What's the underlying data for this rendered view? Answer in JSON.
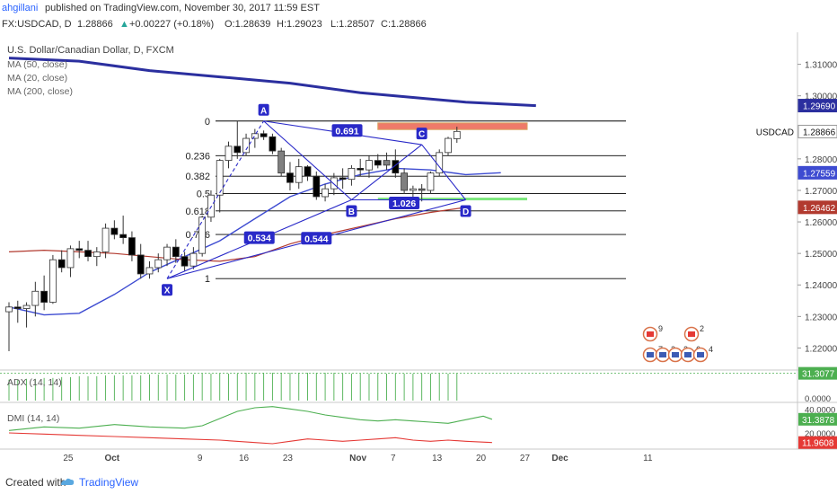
{
  "header": {
    "author": "ahgillani",
    "published": "published on TradingView.com, November 30, 2017 11:59 EST",
    "symbol": "FX:USDCAD, D",
    "last": "1.28866",
    "change": "+0.00227 (+0.18%)",
    "open": "O:1.28639",
    "high": "H:1.29023",
    "low": "L:1.28507",
    "close": "C:1.28866"
  },
  "legend": {
    "title": "U.S. Dollar/Canadian Dollar, D, FXCM",
    "ma50": "MA (50, close)",
    "ma20": "MA (20, close)",
    "ma200": "MA (200, close)"
  },
  "footer": {
    "created": "Created with",
    "brand": "TradingView"
  },
  "colors": {
    "ma200": "#2b2f9f",
    "ma20": "#3d4bd1",
    "ma50": "#b23a2f",
    "bull": "#ffffff",
    "bear": "#000000",
    "neutral": "#808080",
    "harmonic": "#2929c8",
    "fib": "#000000",
    "adx": "#4caf50",
    "dip": "#4caf50",
    "dim": "#e53935",
    "zone_red": "#ef7a6a",
    "zone_green": "#7ee87e"
  },
  "chart_data": {
    "type": "candlestick",
    "y_range": [
      1.213,
      1.319
    ],
    "yticks": [
      "1.31000",
      "1.30000",
      "1.28000",
      "1.27000",
      "1.26000",
      "1.25000",
      "1.24000",
      "1.23000",
      "1.22000"
    ],
    "x_labels": [
      {
        "label": "25",
        "day": 5
      },
      {
        "label": "Oct",
        "day": 10
      },
      {
        "label": "9",
        "day": 20
      },
      {
        "label": "16",
        "day": 25
      },
      {
        "label": "23",
        "day": 30
      },
      {
        "label": "Nov",
        "day": 38
      },
      {
        "label": "7",
        "day": 42
      },
      {
        "label": "13",
        "day": 47
      },
      {
        "label": "20",
        "day": 52
      },
      {
        "label": "27",
        "day": 57
      },
      {
        "label": "Dec",
        "day": 61
      },
      {
        "label": "11",
        "day": 71
      }
    ],
    "price_labels": [
      {
        "value": "1.29690",
        "price": 1.2969,
        "bg": "#2b2f9f"
      },
      {
        "value": "1.28866",
        "price": 1.28866,
        "bg": "#ffffff",
        "text": "USDCAD"
      },
      {
        "value": "1.27559",
        "price": 1.27559,
        "bg": "#3d4bd1"
      },
      {
        "value": "1.26462",
        "price": 1.26462,
        "bg": "#b23a2f"
      }
    ],
    "candles": [
      {
        "o": 1.2315,
        "h": 1.2345,
        "l": 1.219,
        "c": 1.233
      },
      {
        "o": 1.233,
        "h": 1.235,
        "l": 1.228,
        "c": 1.2325
      },
      {
        "o": 1.2325,
        "h": 1.2345,
        "l": 1.2265,
        "c": 1.2335
      },
      {
        "o": 1.2335,
        "h": 1.241,
        "l": 1.23,
        "c": 1.238
      },
      {
        "o": 1.238,
        "h": 1.243,
        "l": 1.232,
        "c": 1.2345
      },
      {
        "o": 1.2345,
        "h": 1.2495,
        "l": 1.234,
        "c": 1.248
      },
      {
        "o": 1.248,
        "h": 1.251,
        "l": 1.244,
        "c": 1.2455
      },
      {
        "o": 1.2455,
        "h": 1.2525,
        "l": 1.2425,
        "c": 1.2515
      },
      {
        "o": 1.2515,
        "h": 1.254,
        "l": 1.2485,
        "c": 1.251
      },
      {
        "o": 1.251,
        "h": 1.254,
        "l": 1.2475,
        "c": 1.249
      },
      {
        "o": 1.249,
        "h": 1.252,
        "l": 1.246,
        "c": 1.2505
      },
      {
        "o": 1.2505,
        "h": 1.2595,
        "l": 1.2485,
        "c": 1.258
      },
      {
        "o": 1.258,
        "h": 1.2605,
        "l": 1.2545,
        "c": 1.256
      },
      {
        "o": 1.256,
        "h": 1.262,
        "l": 1.253,
        "c": 1.255
      },
      {
        "o": 1.255,
        "h": 1.257,
        "l": 1.2475,
        "c": 1.2495
      },
      {
        "o": 1.2495,
        "h": 1.253,
        "l": 1.242,
        "c": 1.2435
      },
      {
        "o": 1.2435,
        "h": 1.2475,
        "l": 1.242,
        "c": 1.2455
      },
      {
        "o": 1.2455,
        "h": 1.25,
        "l": 1.244,
        "c": 1.248
      },
      {
        "o": 1.248,
        "h": 1.253,
        "l": 1.246,
        "c": 1.252
      },
      {
        "o": 1.252,
        "h": 1.2545,
        "l": 1.247,
        "c": 1.249
      },
      {
        "o": 1.249,
        "h": 1.2505,
        "l": 1.2445,
        "c": 1.246
      },
      {
        "o": 1.246,
        "h": 1.252,
        "l": 1.245,
        "c": 1.25
      },
      {
        "o": 1.25,
        "h": 1.262,
        "l": 1.249,
        "c": 1.2615
      },
      {
        "o": 1.2615,
        "h": 1.27,
        "l": 1.26,
        "c": 1.2685
      },
      {
        "o": 1.2685,
        "h": 1.28,
        "l": 1.263,
        "c": 1.2795
      },
      {
        "o": 1.2795,
        "h": 1.2855,
        "l": 1.277,
        "c": 1.284
      },
      {
        "o": 1.284,
        "h": 1.292,
        "l": 1.28,
        "c": 1.282
      },
      {
        "o": 1.282,
        "h": 1.288,
        "l": 1.281,
        "c": 1.2865
      },
      {
        "o": 1.2865,
        "h": 1.2895,
        "l": 1.2835,
        "c": 1.288
      },
      {
        "o": 1.288,
        "h": 1.289,
        "l": 1.286,
        "c": 1.287
      },
      {
        "o": 1.287,
        "h": 1.288,
        "l": 1.2815,
        "c": 1.2825
      },
      {
        "o": 1.2825,
        "h": 1.2835,
        "l": 1.2745,
        "c": 1.2755
      },
      {
        "o": 1.2755,
        "h": 1.279,
        "l": 1.27,
        "c": 1.2725
      },
      {
        "o": 1.2725,
        "h": 1.28,
        "l": 1.2705,
        "c": 1.2775
      },
      {
        "o": 1.2775,
        "h": 1.278,
        "l": 1.273,
        "c": 1.2745
      },
      {
        "o": 1.2745,
        "h": 1.276,
        "l": 1.267,
        "c": 1.268
      },
      {
        "o": 1.268,
        "h": 1.272,
        "l": 1.2665,
        "c": 1.2705
      },
      {
        "o": 1.2705,
        "h": 1.2755,
        "l": 1.2685,
        "c": 1.274
      },
      {
        "o": 1.274,
        "h": 1.277,
        "l": 1.2705,
        "c": 1.2735
      },
      {
        "o": 1.2735,
        "h": 1.278,
        "l": 1.2715,
        "c": 1.277
      },
      {
        "o": 1.277,
        "h": 1.28,
        "l": 1.2745,
        "c": 1.2765
      },
      {
        "o": 1.2765,
        "h": 1.281,
        "l": 1.274,
        "c": 1.2795
      },
      {
        "o": 1.2795,
        "h": 1.2815,
        "l": 1.277,
        "c": 1.278
      },
      {
        "o": 1.278,
        "h": 1.282,
        "l": 1.2765,
        "c": 1.2795
      },
      {
        "o": 1.2795,
        "h": 1.283,
        "l": 1.274,
        "c": 1.2755
      },
      {
        "o": 1.2755,
        "h": 1.277,
        "l": 1.269,
        "c": 1.27
      },
      {
        "o": 1.27,
        "h": 1.2715,
        "l": 1.268,
        "c": 1.2705
      },
      {
        "o": 1.2705,
        "h": 1.272,
        "l": 1.2665,
        "c": 1.27
      },
      {
        "o": 1.27,
        "h": 1.276,
        "l": 1.269,
        "c": 1.2755
      },
      {
        "o": 1.2755,
        "h": 1.283,
        "l": 1.2745,
        "c": 1.282
      },
      {
        "o": 1.282,
        "h": 1.287,
        "l": 1.281,
        "c": 1.2865
      },
      {
        "o": 1.2864,
        "h": 1.2902,
        "l": 1.2851,
        "c": 1.2887
      }
    ],
    "candle_gray": [
      31,
      43,
      45,
      47
    ],
    "ma200": [
      [
        0,
        1.312
      ],
      [
        8,
        1.311
      ],
      [
        16,
        1.308
      ],
      [
        24,
        1.306
      ],
      [
        32,
        1.304
      ],
      [
        40,
        1.301
      ],
      [
        48,
        1.299
      ],
      [
        52,
        1.298
      ],
      [
        60,
        1.2969
      ]
    ],
    "ma20": [
      [
        0,
        1.233
      ],
      [
        4,
        1.2305
      ],
      [
        8,
        1.231
      ],
      [
        12,
        1.237
      ],
      [
        16,
        1.244
      ],
      [
        20,
        1.249
      ],
      [
        24,
        1.254
      ],
      [
        28,
        1.261
      ],
      [
        32,
        1.268
      ],
      [
        36,
        1.272
      ],
      [
        40,
        1.275
      ],
      [
        44,
        1.277
      ],
      [
        48,
        1.2765
      ],
      [
        52,
        1.275
      ],
      [
        56,
        1.2756
      ]
    ],
    "ma50": [
      [
        0,
        1.2505
      ],
      [
        4,
        1.251
      ],
      [
        8,
        1.2505
      ],
      [
        12,
        1.25
      ],
      [
        16,
        1.249
      ],
      [
        20,
        1.248
      ],
      [
        24,
        1.2475
      ],
      [
        28,
        1.249
      ],
      [
        32,
        1.253
      ],
      [
        36,
        1.256
      ],
      [
        40,
        1.2585
      ],
      [
        44,
        1.261
      ],
      [
        48,
        1.263
      ],
      [
        52,
        1.2646
      ]
    ],
    "fib": {
      "x0": 0,
      "x1": 59,
      "levels": [
        {
          "label": "0",
          "price": 1.292
        },
        {
          "label": "0.236",
          "price": 1.281
        },
        {
          "label": "0.382",
          "price": 1.2745
        },
        {
          "label": "0.5",
          "price": 1.269
        },
        {
          "label": "0.618",
          "price": 1.2635
        },
        {
          "label": "0.786",
          "price": 1.256
        },
        {
          "label": "1",
          "price": 1.242
        }
      ]
    },
    "zone_red": {
      "x0": 42,
      "x1": 59,
      "p_top": 1.2914,
      "p_bot": 1.2893
    },
    "zone_green": {
      "x0": 42,
      "x1": 59,
      "p_top": 1.2677,
      "p_bot": 1.267
    },
    "pattern": {
      "points": [
        {
          "label": "X",
          "day": 18,
          "price": 1.242
        },
        {
          "label": "A",
          "day": 29,
          "price": 1.292
        },
        {
          "label": "B",
          "day": 39,
          "price": 1.267
        },
        {
          "label": "C",
          "day": 47,
          "price": 1.2845
        },
        {
          "label": "D",
          "day": 52,
          "price": 1.267
        }
      ],
      "ratios": [
        {
          "label": "0.691",
          "day": 38.5,
          "price": 1.289
        },
        {
          "label": "1.026",
          "day": 45,
          "price": 1.266
        },
        {
          "label": "0.534",
          "day": 28.5,
          "price": 1.255
        },
        {
          "label": "0.544",
          "day": 35,
          "price": 1.2548
        }
      ]
    },
    "events": {
      "top_counts": [
        "9",
        "2"
      ],
      "bottom_counts": [
        "7",
        "2",
        "2",
        "6",
        "4"
      ]
    },
    "adx": {
      "label": "ADX (14, 14)",
      "value": "31.3077",
      "ticks": [
        "0.0000"
      ],
      "values": [
        24,
        24,
        25,
        25,
        26,
        26,
        27,
        27,
        28,
        28,
        28,
        29,
        29,
        29,
        29,
        29,
        30,
        30,
        30,
        30,
        30,
        30,
        31,
        31,
        31,
        31,
        31,
        32,
        32,
        32,
        32,
        32,
        32,
        32,
        32,
        32,
        32,
        32,
        31,
        31,
        31,
        31,
        31,
        31,
        31,
        31,
        31,
        31,
        31,
        31,
        31,
        31
      ]
    },
    "dmi": {
      "label": "DMI (14, 14)",
      "plus_value": "31.3878",
      "minus_value": "11.9608",
      "ticks": [
        "40.0000",
        "20.0000"
      ],
      "plus": [
        [
          0,
          22
        ],
        [
          4,
          25
        ],
        [
          8,
          24
        ],
        [
          12,
          27
        ],
        [
          16,
          25
        ],
        [
          20,
          24
        ],
        [
          22,
          26
        ],
        [
          24,
          32
        ],
        [
          26,
          38
        ],
        [
          28,
          41
        ],
        [
          30,
          42
        ],
        [
          32,
          40
        ],
        [
          34,
          38
        ],
        [
          36,
          35
        ],
        [
          38,
          33
        ],
        [
          40,
          31
        ],
        [
          42,
          30
        ],
        [
          44,
          31
        ],
        [
          46,
          30
        ],
        [
          48,
          29
        ],
        [
          50,
          28
        ],
        [
          52,
          31
        ],
        [
          54,
          34
        ],
        [
          55,
          31.4
        ]
      ],
      "minus": [
        [
          0,
          20
        ],
        [
          4,
          19
        ],
        [
          8,
          18
        ],
        [
          12,
          17
        ],
        [
          16,
          16
        ],
        [
          20,
          15
        ],
        [
          24,
          14
        ],
        [
          28,
          12
        ],
        [
          30,
          11
        ],
        [
          32,
          13
        ],
        [
          34,
          15
        ],
        [
          36,
          14
        ],
        [
          38,
          13
        ],
        [
          40,
          14
        ],
        [
          42,
          15
        ],
        [
          44,
          16
        ],
        [
          46,
          14
        ],
        [
          48,
          13
        ],
        [
          50,
          14
        ],
        [
          52,
          13
        ],
        [
          55,
          11.96
        ]
      ]
    }
  }
}
